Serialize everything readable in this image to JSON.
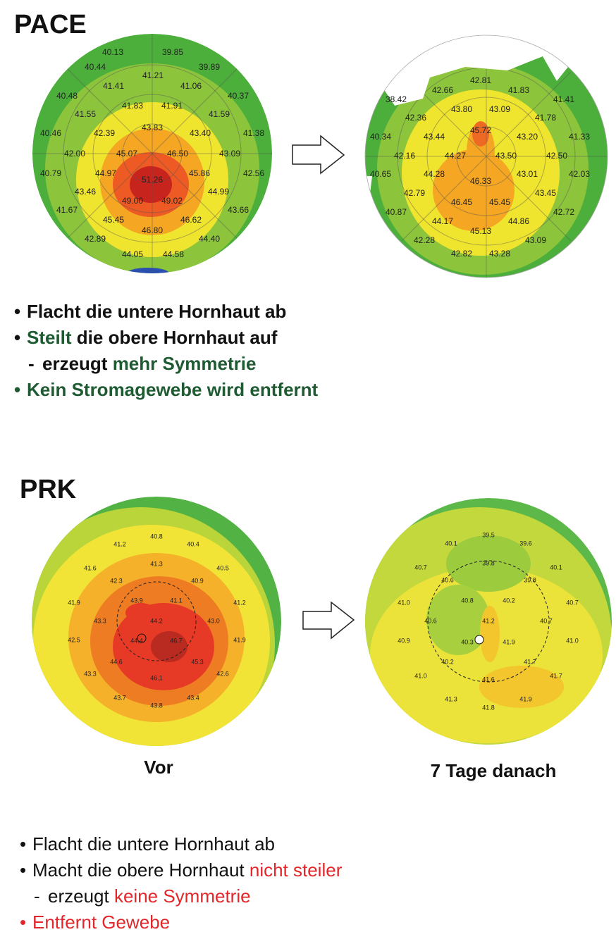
{
  "sections": [
    {
      "title": "PACE",
      "maps": [
        {
          "labels": [
            "40.13",
            "39.85",
            "40.44",
            "39.89",
            "41.21",
            "41.41",
            "41.06",
            "40.48",
            "40.37",
            "41.83",
            "41.91",
            "41.55",
            "41.59",
            "43.83",
            "42.39",
            "43.40",
            "40.46",
            "41.38",
            "45.07",
            "46.50",
            "42.00",
            "43.09",
            "44.97",
            "45.86",
            "40.79",
            "42.56",
            "51.26",
            "43.46",
            "44.99",
            "49.00",
            "49.02",
            "41.67",
            "43.66",
            "45.45",
            "46.62",
            "46.80",
            "42.89",
            "44.40",
            "44.05",
            "44.58"
          ]
        },
        {
          "labels": [
            "42.81",
            "42.66",
            "41.83",
            "41.41",
            "38.42",
            "43.80",
            "43.09",
            "42.36",
            "41.78",
            "45.72",
            "43.44",
            "43.20",
            "40.34",
            "41.33",
            "44.27",
            "43.50",
            "42.16",
            "42.50",
            "44.28",
            "43.01",
            "40.65",
            "42.03",
            "46.33",
            "42.79",
            "43.45",
            "46.45",
            "45.45",
            "40.87",
            "42.72",
            "44.17",
            "44.86",
            "45.13",
            "42.28",
            "43.09",
            "42.82",
            "43.28"
          ]
        }
      ],
      "bullets": [
        {
          "segments": [
            {
              "text": "Flacht die untere Hornhaut ab"
            }
          ]
        },
        {
          "segments": [
            {
              "text": "Steilt",
              "color": "#1e5a32"
            },
            {
              "text": " die obere Hornhaut auf"
            }
          ],
          "sub": [
            {
              "segments": [
                {
                  "text": "erzeugt "
                },
                {
                  "text": "mehr Symmetrie",
                  "color": "#1e5a32"
                }
              ]
            }
          ]
        },
        {
          "color": "#1e5a32",
          "segments": [
            {
              "text": "Kein Stromagewebe wird entfernt"
            }
          ]
        }
      ]
    },
    {
      "title": "PRK",
      "maps": [
        {
          "caption": "Vor",
          "labels": [
            "40.8",
            "41.2",
            "40.4",
            "41.6",
            "40.5",
            "41.3",
            "42.3",
            "40.9",
            "43.9",
            "41.1",
            "41.9",
            "41.2",
            "43.3",
            "44.2",
            "43.0",
            "42.5",
            "44.4",
            "46.7",
            "41.9",
            "44.6",
            "45.3",
            "43.3",
            "46.1",
            "42.6",
            "43.7",
            "43.4",
            "43.8"
          ]
        },
        {
          "caption": "7 Tage danach",
          "labels": [
            "39.5",
            "40.1",
            "39.6",
            "40.7",
            "40.1",
            "39.8",
            "40.6",
            "39.8",
            "40.8",
            "40.2",
            "41.0",
            "40.7",
            "40.6",
            "41.2",
            "40.7",
            "40.9",
            "40.3",
            "41.9",
            "41.0",
            "40.2",
            "41.7",
            "41.0",
            "41.6",
            "41.7",
            "41.3",
            "41.8",
            "41.9"
          ]
        }
      ],
      "bullets": [
        {
          "segments": [
            {
              "text": "Flacht die untere Hornhaut ab"
            }
          ]
        },
        {
          "segments": [
            {
              "text": "Macht die obere Hornhaut "
            },
            {
              "text": "nicht steiler",
              "color": "#e3262a"
            }
          ],
          "sub": [
            {
              "segments": [
                {
                  "text": "erzeugt "
                },
                {
                  "text": "keine Symmetrie",
                  "color": "#e3262a"
                }
              ]
            }
          ]
        },
        {
          "color": "#e3262a",
          "segments": [
            {
              "text": "Entfernt Gewebe"
            }
          ]
        }
      ]
    }
  ]
}
